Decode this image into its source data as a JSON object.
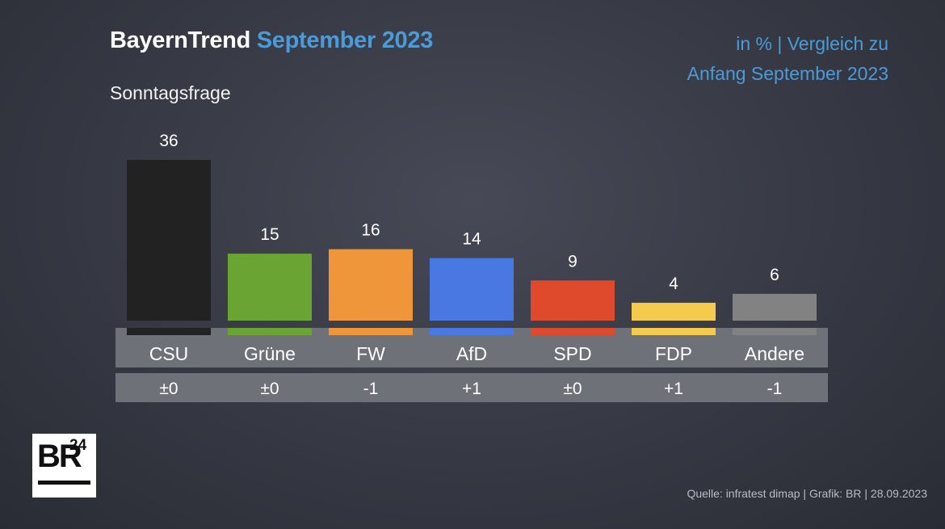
{
  "header": {
    "title_main": "BayernTrend",
    "title_accent": "September 2023",
    "subtitle": "Sonntagsfrage",
    "note_line1": "in % | Vergleich zu",
    "note_line2": "Anfang September 2023"
  },
  "chart_data": {
    "type": "bar",
    "categories": [
      "CSU",
      "Grüne",
      "FW",
      "AfD",
      "SPD",
      "FDP",
      "Andere"
    ],
    "values": [
      36,
      15,
      16,
      14,
      9,
      4,
      6
    ],
    "value_labels": [
      "36",
      "15",
      "16",
      "14",
      "9",
      "4",
      "6"
    ],
    "changes": [
      "±0",
      "±0",
      "-1",
      "+1",
      "±0",
      "+1",
      "-1"
    ],
    "colors": [
      "#222222",
      "#6aa534",
      "#ef953a",
      "#4a78e2",
      "#df4a2c",
      "#f5cb4e",
      "#828282"
    ],
    "title": "BayernTrend September 2023",
    "subtitle": "Sonntagsfrage",
    "ylim": [
      0,
      36
    ],
    "grid": false
  },
  "logo": {
    "text": "BR",
    "sup": "24"
  },
  "footer": {
    "source": "Quelle: infratest dimap | Grafik: BR | 28.09.2023"
  }
}
